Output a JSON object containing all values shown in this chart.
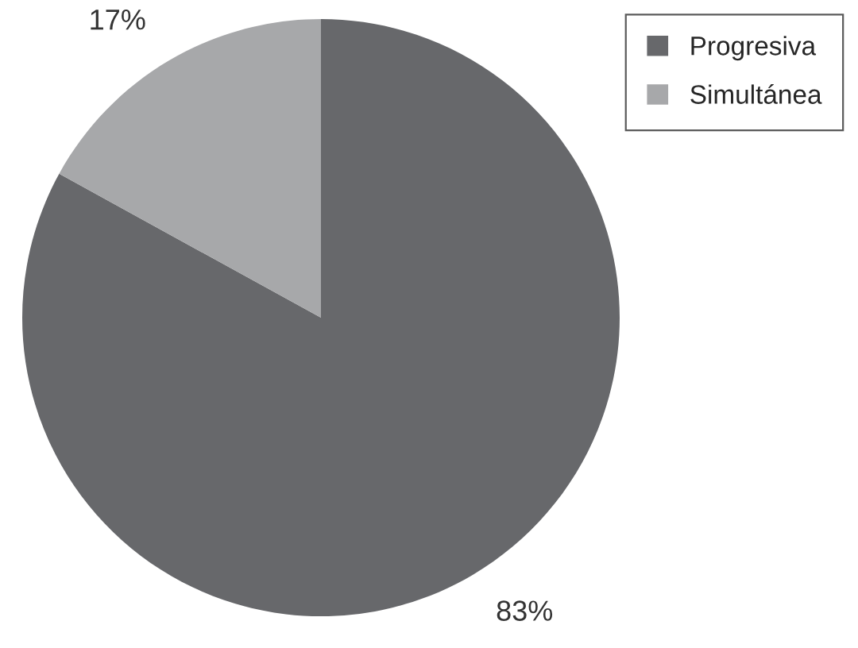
{
  "chart_data": {
    "type": "pie",
    "categories": [
      "Progresiva",
      "Simultánea"
    ],
    "values": [
      83,
      17
    ],
    "colors": [
      "#67686b",
      "#a7a8aa"
    ],
    "value_labels": [
      "83%",
      "17%"
    ],
    "legend": "top right"
  }
}
